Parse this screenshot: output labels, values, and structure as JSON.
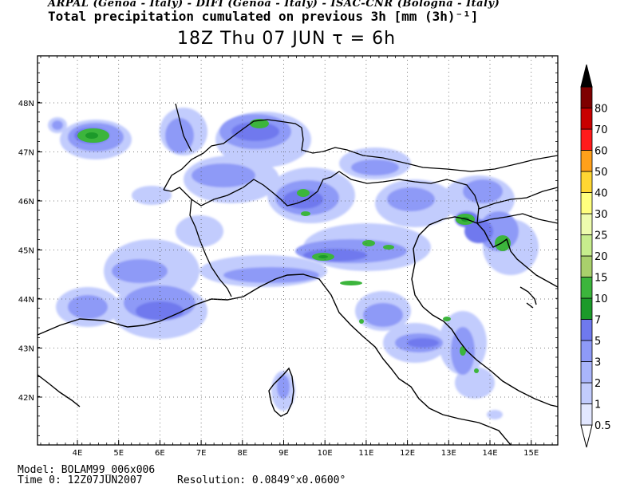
{
  "header": {
    "agencies": "ARPAL (Genoa - Italy)  -  DIFI (Genoa - Italy)  -  ISAC-CNR (Bologna - Italy)",
    "field_title": "Total precipitation cumulated on previous 3h [mm (3h)⁻¹]",
    "valid_time": "18Z Thu 07 JUN  τ = 6h"
  },
  "map": {
    "lon_labels": [
      "4E",
      "5E",
      "6E",
      "7E",
      "8E",
      "9E",
      "10E",
      "11E",
      "12E",
      "13E",
      "14E",
      "15E"
    ],
    "lat_labels": [
      "48N",
      "47N",
      "46N",
      "45N",
      "44N",
      "43N",
      "42N"
    ],
    "border_color": "#000000"
  },
  "colorbar": {
    "levels": [
      {
        "label": "0.5",
        "color": "#e2e7ff"
      },
      {
        "label": "1",
        "color": "#c2ccfd"
      },
      {
        "label": "2",
        "color": "#a9b5fb"
      },
      {
        "label": "3",
        "color": "#8e9af7"
      },
      {
        "label": "5",
        "color": "#6f79ee"
      },
      {
        "label": "7",
        "color": "#1c9a2a"
      },
      {
        "label": "10",
        "color": "#3cb53c"
      },
      {
        "label": "15",
        "color": "#a9d06c"
      },
      {
        "label": "20",
        "color": "#c7ed8d"
      },
      {
        "label": "25",
        "color": "#eefcae"
      },
      {
        "label": "30",
        "color": "#ffff7e"
      },
      {
        "label": "40",
        "color": "#ffd733"
      },
      {
        "label": "50",
        "color": "#ffa01a"
      },
      {
        "label": "60",
        "color": "#ff1b1b"
      },
      {
        "label": "70",
        "color": "#c80000"
      },
      {
        "label": "80",
        "color": "#7e0000"
      }
    ],
    "overflow_color": "#000000"
  },
  "footer": {
    "model": "Model: BOLAM99_006x006",
    "time": "Time 0: 12Z07JUN2007",
    "resolution": "Resolution: 0.0849°x0.0600°"
  }
}
